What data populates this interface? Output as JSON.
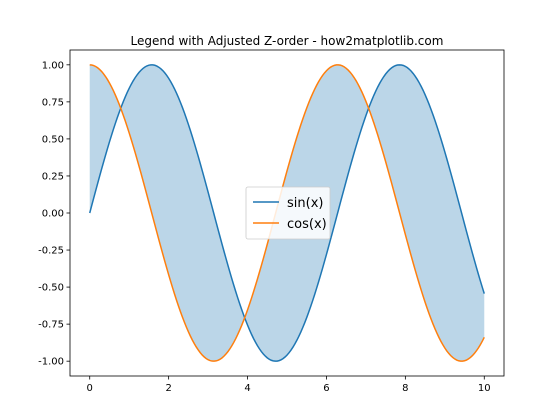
{
  "chart_data": {
    "type": "line",
    "title": "Legend with Adjusted Z-order - how2matplotlib.com",
    "xlabel": "",
    "ylabel": "",
    "xlim": [
      -0.5,
      10.5
    ],
    "ylim": [
      -1.1,
      1.1
    ],
    "xticks": [
      0,
      2,
      4,
      6,
      8,
      10
    ],
    "xtick_labels": [
      "0",
      "2",
      "4",
      "6",
      "8",
      "10"
    ],
    "yticks": [
      1.0,
      0.75,
      0.5,
      0.25,
      0.0,
      -0.25,
      -0.5,
      -0.75,
      -1.0
    ],
    "ytick_labels": [
      "1.00",
      "0.75",
      "0.50",
      "0.25",
      "0.00",
      "-0.25",
      "-0.50",
      "-0.75",
      "-1.00"
    ],
    "grid": false,
    "legend_position": "center",
    "x_range": [
      0,
      10
    ],
    "samples": 201,
    "series": [
      {
        "name": "sin(x)",
        "function": "sin",
        "color": "#1f77b4"
      },
      {
        "name": "cos(x)",
        "function": "cos",
        "color": "#ff7f0e"
      }
    ],
    "fill_between": {
      "between": [
        "sin(x)",
        "cos(x)"
      ],
      "color": "#1f77b4",
      "alpha": 0.3
    }
  }
}
